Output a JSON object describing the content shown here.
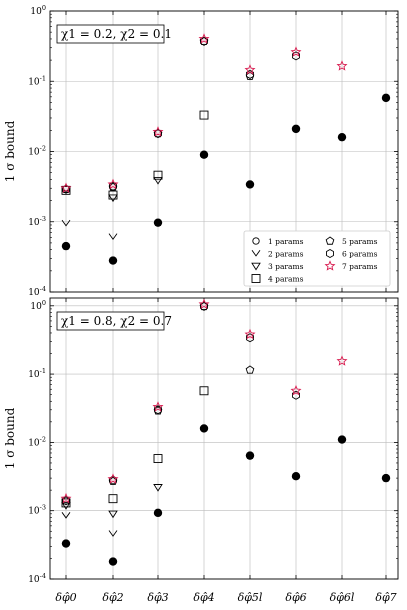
{
  "chart_data": [
    {
      "type": "scatter",
      "title": "χ1 = 0.2, χ2 = 0.1",
      "ylabel": "1 σ bound",
      "yscale": "log",
      "ylim": [
        0.0001,
        1
      ],
      "categories": [
        "δφ̂0",
        "δφ̂2",
        "δφ̂3",
        "δφ̂4",
        "δφ̂5l",
        "δφ̂6",
        "δφ̂6l",
        "δφ̂7"
      ],
      "grid": true,
      "legend_position": "lower-right",
      "series": [
        {
          "name": "1 params",
          "marker": "circle-filled",
          "values": [
            0.00045,
            0.00028,
            0.00097,
            0.009,
            0.0034,
            0.021,
            0.016,
            0.058
          ]
        },
        {
          "name": "2 params",
          "marker": "v",
          "values": [
            0.00095,
            0.00061,
            null,
            null,
            null,
            null,
            null,
            null
          ]
        },
        {
          "name": "3 params",
          "marker": "triangle-down",
          "values": [
            0.0029,
            0.0022,
            0.0039,
            null,
            null,
            null,
            null,
            null
          ]
        },
        {
          "name": "4 params",
          "marker": "square",
          "values": [
            0.0028,
            0.0024,
            0.0046,
            0.033,
            null,
            null,
            null,
            null
          ]
        },
        {
          "name": "5 params",
          "marker": "pentagon",
          "values": [
            0.0029,
            0.0031,
            0.018,
            0.37,
            0.118,
            null,
            null,
            null
          ]
        },
        {
          "name": "6 params",
          "marker": "hexagon",
          "values": [
            0.0029,
            0.0032,
            0.018,
            0.37,
            0.125,
            0.23,
            null,
            null
          ]
        },
        {
          "name": "7 params",
          "marker": "star",
          "values": [
            0.003,
            0.0034,
            0.019,
            0.4,
            0.145,
            0.26,
            0.165,
            null
          ]
        }
      ]
    },
    {
      "type": "scatter",
      "title": "χ1 = 0.8, χ2 = 0.7",
      "ylabel": "1 σ bound",
      "yscale": "log",
      "ylim": [
        0.0001,
        1.3
      ],
      "categories": [
        "δφ̂0",
        "δφ̂2",
        "δφ̂3",
        "δφ̂4",
        "δφ̂5l",
        "δφ̂6",
        "δφ̂6l",
        "δφ̂7"
      ],
      "grid": true,
      "series": [
        {
          "name": "1 params",
          "marker": "circle-filled",
          "values": [
            0.00033,
            0.00018,
            0.00093,
            0.016,
            0.0064,
            0.0032,
            0.011,
            0.003
          ]
        },
        {
          "name": "2 params",
          "marker": "v",
          "values": [
            0.00085,
            0.00046,
            null,
            null,
            null,
            null,
            null,
            null
          ]
        },
        {
          "name": "3 params",
          "marker": "triangle-down",
          "values": [
            0.0012,
            0.0009,
            0.0022,
            null,
            null,
            null,
            null,
            null
          ]
        },
        {
          "name": "4 params",
          "marker": "square",
          "values": [
            0.0013,
            0.0015,
            0.0058,
            0.057,
            null,
            null,
            null,
            null
          ]
        },
        {
          "name": "5 params",
          "marker": "pentagon",
          "values": [
            0.0014,
            0.0027,
            0.029,
            0.98,
            0.115,
            null,
            null,
            null
          ]
        },
        {
          "name": "6 params",
          "marker": "hexagon",
          "values": [
            0.0014,
            0.0028,
            0.03,
            0.98,
            0.34,
            0.049,
            null,
            null
          ]
        },
        {
          "name": "7 params",
          "marker": "star",
          "values": [
            0.0015,
            0.0029,
            0.033,
            1.05,
            0.38,
            0.057,
            0.155,
            null
          ]
        }
      ]
    }
  ],
  "legend": {
    "entries": [
      {
        "name": "1 params",
        "marker": "circle"
      },
      {
        "name": "2 params",
        "marker": "v"
      },
      {
        "name": "3 params",
        "marker": "triangle-down"
      },
      {
        "name": "4 params",
        "marker": "square"
      },
      {
        "name": "5 params",
        "marker": "pentagon"
      },
      {
        "name": "6 params",
        "marker": "hexagon"
      },
      {
        "name": "7 params",
        "marker": "star"
      }
    ]
  },
  "colors": {
    "ink": "#000000",
    "star": "#d81b4f",
    "grid": "#bbbbbb"
  }
}
